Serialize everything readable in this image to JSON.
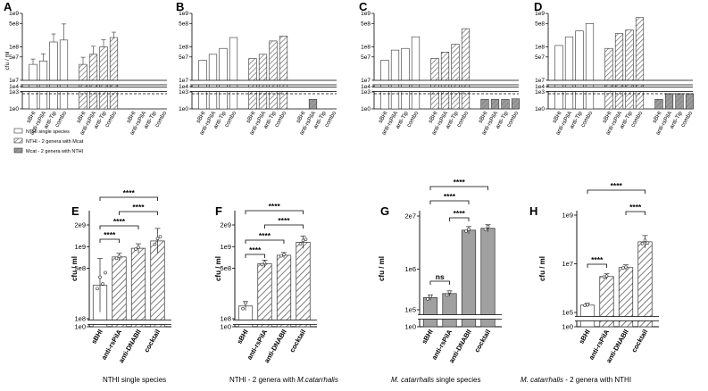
{
  "chart_data": [
    {
      "panel": "A",
      "type": "bar",
      "ylabel": "cfu / ml",
      "y_ticks": [
        "1e0",
        "1e3",
        "1e4",
        "1e7",
        "5e7",
        "1e8",
        "5e8",
        "1e9"
      ],
      "categories": [
        "sBHI",
        "anti-rsPilA",
        "anti-Tip",
        "combo",
        "sBHI",
        "anti-rsPilA",
        "anti-Tip",
        "combo",
        "sBHI",
        "anti-rsPilA",
        "anti-Tip",
        "combo"
      ],
      "groups": [
        {
          "name": "NTHi single species",
          "values": [
            30000000,
            38000000,
            140000000,
            160000000
          ]
        },
        {
          "name": "NTHi - 2 genera with Mcat",
          "values": [
            30000000,
            60000000,
            100000000,
            190000000
          ]
        },
        {
          "name": "Mcat - 2 genera with NTHi",
          "values": [
            0,
            0,
            0,
            0
          ]
        }
      ],
      "dashed_line": 1000
    },
    {
      "panel": "B",
      "type": "bar",
      "ylabel": "",
      "y_ticks": [
        "1e0",
        "1e3",
        "1e4",
        "1e7",
        "5e7",
        "1e8",
        "5e8",
        "1e9"
      ],
      "categories": [
        "sBHI",
        "anti-rsPilA",
        "anti-Tip",
        "combo",
        "sBHI",
        "anti-rsPilA",
        "anti-Tip",
        "combo",
        "sBHI",
        "anti-rsPilA",
        "anti-Tip",
        "combo"
      ],
      "groups": [
        {
          "name": "NTHi single species",
          "values": [
            40000000,
            60000000,
            90000000,
            190000000
          ]
        },
        {
          "name": "NTHi - 2 genera with Mcat",
          "values": [
            45000000,
            60000000,
            150000000,
            210000000
          ]
        },
        {
          "name": "Mcat - 2 genera with NTHi",
          "values": [
            0,
            50,
            0,
            0
          ]
        }
      ],
      "dashed_line": 1000
    },
    {
      "panel": "C",
      "type": "bar",
      "ylabel": "",
      "y_ticks": [
        "1e0",
        "1e3",
        "1e4",
        "1e7",
        "5e7",
        "1e8",
        "5e8",
        "1e9"
      ],
      "categories": [
        "sBHI",
        "anti-rsPilA",
        "anti-Tip",
        "combo",
        "sBHI",
        "anti-rsPilA",
        "anti-Tip",
        "combo",
        "sBHI",
        "anti-rsPilA",
        "anti-Tip",
        "combo"
      ],
      "groups": [
        {
          "name": "NTHi single species",
          "values": [
            40000000,
            80000000,
            90000000,
            200000000
          ]
        },
        {
          "name": "NTHi - 2 genera with Mcat",
          "values": [
            45000000,
            70000000,
            120000000,
            350000000
          ]
        },
        {
          "name": "Mcat - 2 genera with NTHi",
          "values": [
            50,
            50,
            50,
            60
          ]
        }
      ],
      "dashed_line": 1000
    },
    {
      "panel": "D",
      "type": "bar",
      "ylabel": "",
      "y_ticks": [
        "1e0",
        "1e3",
        "1e4",
        "1e7",
        "5e7",
        "1e8",
        "5e8",
        "1e9"
      ],
      "categories": [
        "sBHI",
        "anti-rsPilA",
        "anti-Tip",
        "combo",
        "sBHI",
        "anti-rsPilA",
        "anti-Tip",
        "combo",
        "sBHI",
        "anti-rsPilA",
        "anti-Tip",
        "combo"
      ],
      "groups": [
        {
          "name": "NTHi single species",
          "values": [
            110000000,
            200000000,
            300000000,
            500000000
          ]
        },
        {
          "name": "NTHi - 2 genera with Mcat",
          "values": [
            90000000,
            250000000,
            320000000,
            750000000
          ]
        },
        {
          "name": "Mcat - 2 genera with NTHi",
          "values": [
            50,
            500,
            500,
            500
          ]
        }
      ],
      "dashed_line": 1000
    },
    {
      "panel": "E",
      "type": "bar",
      "ylabel": "cfu / ml",
      "caption": "NTHI single species",
      "y_ticks": [
        "1e0",
        "1e8",
        "5e8",
        "1e9",
        "2e9"
      ],
      "categories": [
        "sBHI",
        "anti-rsPilA",
        "anti-DNABII",
        "cocktail"
      ],
      "values": [
        290000000,
        720000000,
        950000000,
        1200000000
      ],
      "comparisons": [
        {
          "from": "sBHI",
          "to": "anti-rsPilA",
          "label": "****"
        },
        {
          "from": "sBHI",
          "to": "anti-DNABII",
          "label": "****"
        },
        {
          "from": "anti-rsPilA",
          "to": "cocktail",
          "label": "****"
        },
        {
          "from": "sBHI",
          "to": "cocktail",
          "label": "****"
        }
      ]
    },
    {
      "panel": "F",
      "type": "bar",
      "ylabel": "cfu / ml",
      "caption": "NTHI - 2 genera with ",
      "caption_italic": "M.catarrhalis",
      "y_ticks": [
        "1e0",
        "1e8",
        "5e8",
        "1e9",
        "2e9"
      ],
      "categories": [
        "sBHI",
        "anti-rsPilA",
        "anti-DNABII",
        "cocktail"
      ],
      "values": [
        150000000,
        580000000,
        760000000,
        1150000000
      ],
      "comparisons": [
        {
          "from": "sBHI",
          "to": "anti-rsPilA",
          "label": "****"
        },
        {
          "from": "sBHI",
          "to": "anti-DNABII",
          "label": "****"
        },
        {
          "from": "anti-rsPilA",
          "to": "cocktail",
          "label": "****"
        },
        {
          "from": "sBHI",
          "to": "cocktail",
          "label": "****"
        }
      ]
    },
    {
      "panel": "G",
      "type": "bar",
      "ylabel": "cfu / ml",
      "caption_italic": "M. catarrhalis",
      "caption": " single species",
      "y_ticks": [
        "1e0",
        "1e5",
        "1e6",
        "2e7"
      ],
      "categories": [
        "sBHI",
        "anti-rsPilA",
        "anti-DNABII",
        "cocktail"
      ],
      "values": [
        200000,
        250000,
        9000000,
        10000000
      ],
      "comparisons": [
        {
          "from": "sBHI",
          "to": "anti-rsPilA",
          "label": "ns"
        },
        {
          "from": "anti-rsPilA",
          "to": "anti-DNABII",
          "label": "****"
        },
        {
          "from": "sBHI",
          "to": "anti-DNABII",
          "label": "****"
        },
        {
          "from": "sBHI",
          "to": "cocktail",
          "label": "****"
        }
      ]
    },
    {
      "panel": "H",
      "type": "bar",
      "ylabel": "cfu / ml",
      "caption_italic": "M. catarrhalis",
      "caption": " - 2 genera with NTHI",
      "y_ticks": [
        "1e0",
        "1e5",
        "1e7",
        "1e9"
      ],
      "categories": [
        "sBHI",
        "anti-rsPilA",
        "anti-DNABII",
        "cocktail"
      ],
      "values": [
        200000,
        3000000,
        7000000,
        80000000
      ],
      "comparisons": [
        {
          "from": "sBHI",
          "to": "anti-rsPilA",
          "label": "****"
        },
        {
          "from": "anti-DNABII",
          "to": "cocktail",
          "label": "****"
        },
        {
          "from": "sBHI",
          "to": "cocktail",
          "label": "****"
        }
      ]
    }
  ],
  "legend": [
    {
      "label": "NTHI single species",
      "style": "open"
    },
    {
      "label": "NTHI - 2 genera with Mcat",
      "style": "hatched"
    },
    {
      "label": "Mcat - 2 genera with NTHI",
      "style": "gray-hatched"
    }
  ]
}
